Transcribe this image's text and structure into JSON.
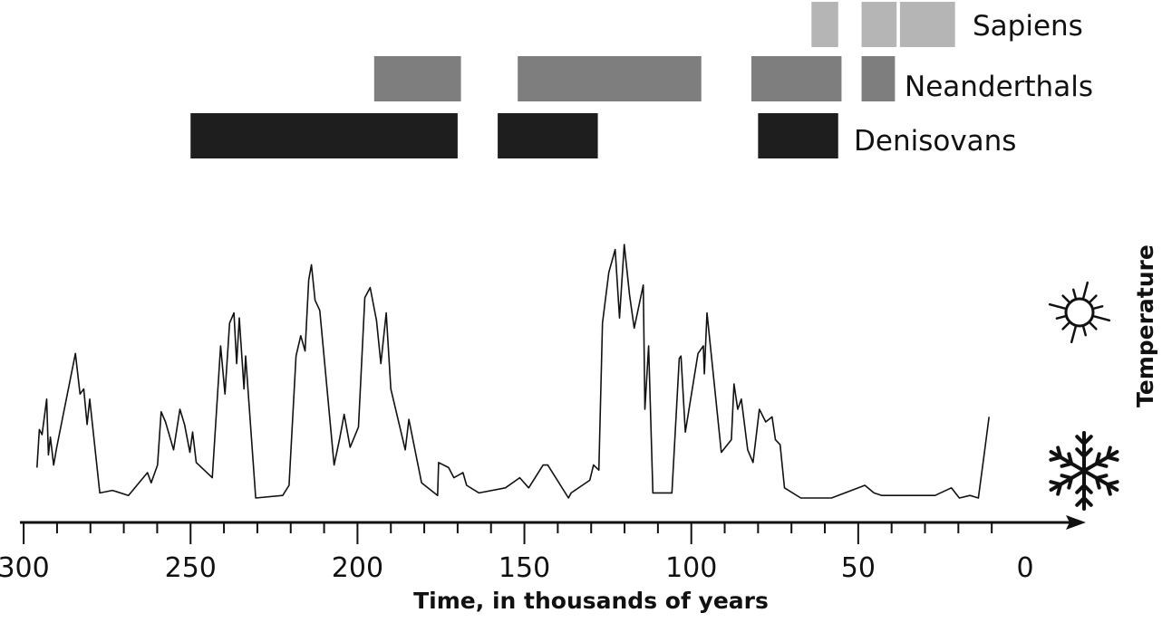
{
  "chart_data": {
    "type": "line",
    "title": "",
    "xlabel": "Time, in thousands of years",
    "ylabel": "Temperature",
    "xlim": [
      300,
      0
    ],
    "x_direction": "reversed (past on the left, present on the right)",
    "x_ticks_major": [
      300,
      250,
      200,
      150,
      100,
      50,
      0
    ],
    "x_ticks_minor_step": 10,
    "y_axis_scale": "relative (no values printed), cold at bottom, warm at top",
    "y_icons": {
      "top": "sun-icon",
      "bottom": "snowflake-icon"
    },
    "grid": false,
    "temperature_series": {
      "t": [
        296,
        295.3,
        294.5,
        293.1,
        292.6,
        292,
        291,
        290.1,
        284.5,
        283.1,
        282,
        281,
        280.2,
        277.2,
        273.4,
        268.6,
        262.9,
        261.8,
        259.9,
        258.8,
        257.5,
        255.1,
        253.2,
        251.8,
        250.2,
        249.4,
        248.3,
        243.5,
        241,
        239.7,
        238.3,
        237,
        236.2,
        235.4,
        234,
        233.5,
        230.5,
        222.4,
        220.5,
        218.4,
        217,
        215.7,
        214.6,
        213.8,
        212.7,
        211.3,
        207,
        205.4,
        204,
        202.2,
        199.7,
        197.8,
        196.2,
        194.3,
        193,
        191.4,
        190,
        185.7,
        184.6,
        180.8,
        176,
        175.7,
        172.7,
        171.1,
        168.4,
        167.3,
        163.6,
        155.7,
        151.4,
        148.7,
        144.4,
        143,
        136.8,
        136,
        130.4,
        129.3,
        127.7,
        126.6,
        124.7,
        122.8,
        121.5,
        120.1,
        118.5,
        117.1,
        114.4,
        113.9,
        112.8,
        111.5,
        105.8,
        103.6,
        103.1,
        101.8,
        98,
        96.4,
        96.1,
        95.3,
        91,
        88,
        87.2,
        86.1,
        85,
        83.1,
        81.5,
        79.6,
        77.7,
        75.8,
        74.8,
        73.4,
        72.1,
        67.2,
        58,
        48,
        45.3,
        42.9,
        27,
        22.1,
        19.7,
        16.5,
        14,
        12.5,
        10.8
      ],
      "relative_temp": [
        12,
        27,
        25,
        39,
        17,
        24,
        13,
        20,
        57,
        41,
        43,
        29,
        39,
        2,
        3,
        1,
        10,
        6,
        13,
        34,
        30,
        19,
        35,
        29,
        18,
        26,
        14,
        8,
        60,
        41,
        69,
        73,
        53,
        71,
        43,
        56,
        0,
        1,
        5,
        56,
        64,
        58,
        86,
        92,
        78,
        74,
        13,
        23,
        33,
        20,
        28,
        79,
        83,
        70,
        53,
        73,
        43,
        19,
        31,
        6,
        1,
        14,
        12,
        8,
        10,
        5,
        2,
        4,
        8,
        4,
        13,
        13,
        0,
        2,
        7,
        13,
        11,
        69,
        89,
        98,
        71,
        100,
        80,
        67,
        84,
        35,
        60,
        2,
        2,
        55,
        56,
        26,
        57,
        60,
        49,
        73,
        18,
        23,
        45,
        35,
        39,
        19,
        14,
        35,
        30,
        32,
        23,
        21,
        4,
        0,
        0,
        5,
        2,
        1,
        1,
        4,
        0,
        1,
        0,
        15,
        32
      ]
    },
    "species_ranges": {
      "type": "timeline-bars",
      "series": [
        {
          "name": "Sapiens",
          "color": "#b5b5b5",
          "ranges": [
            [
              64,
              56
            ],
            [
              49,
              38.5
            ],
            [
              37.5,
              21
            ]
          ]
        },
        {
          "name": "Neanderthals",
          "color": "#7e7e7e",
          "ranges": [
            [
              195,
              169
            ],
            [
              152,
              97
            ],
            [
              82,
              55
            ],
            [
              49,
              39
            ]
          ]
        },
        {
          "name": "Denisovans",
          "color": "#1e1e1e",
          "ranges": [
            [
              250,
              170
            ],
            [
              158,
              128
            ],
            [
              80,
              56
            ]
          ]
        }
      ]
    },
    "colors": {
      "curve": "#111111",
      "axis": "#111111"
    }
  }
}
